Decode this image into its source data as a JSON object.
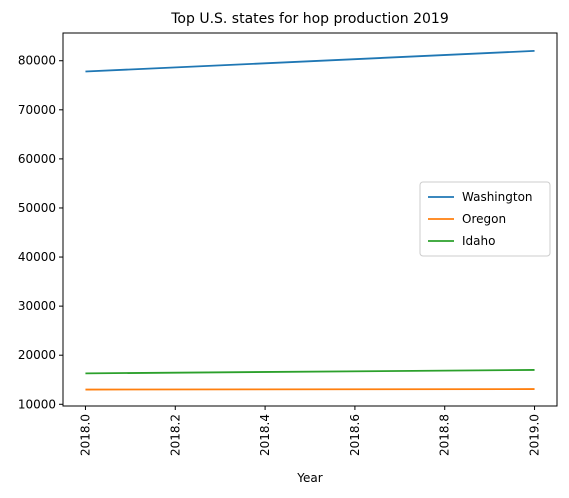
{
  "chart_data": {
    "type": "line",
    "title": "Top U.S. states for hop production 2019",
    "xlabel": "Year",
    "ylabel": "",
    "x": [
      2018.0,
      2019.0
    ],
    "xlim": [
      2017.95,
      2019.05
    ],
    "ylim": [
      9650,
      85650
    ],
    "xticks": [
      2018.0,
      2018.2,
      2018.4,
      2018.6,
      2018.8,
      2019.0
    ],
    "xtick_labels": [
      "2018.0",
      "2018.2",
      "2018.4",
      "2018.6",
      "2018.8",
      "2019.0"
    ],
    "yticks": [
      10000,
      20000,
      30000,
      40000,
      50000,
      60000,
      70000,
      80000
    ],
    "ytick_labels": [
      "10000",
      "20000",
      "30000",
      "40000",
      "50000",
      "60000",
      "70000",
      "80000"
    ],
    "grid": false,
    "legend_position": "center-right",
    "series": [
      {
        "name": "Washington",
        "color": "#1f77b4",
        "values": [
          77800,
          82000
        ]
      },
      {
        "name": "Oregon",
        "color": "#ff7f0e",
        "values": [
          13000,
          13100
        ]
      },
      {
        "name": "Idaho",
        "color": "#2ca02c",
        "values": [
          16300,
          17000
        ]
      }
    ]
  }
}
